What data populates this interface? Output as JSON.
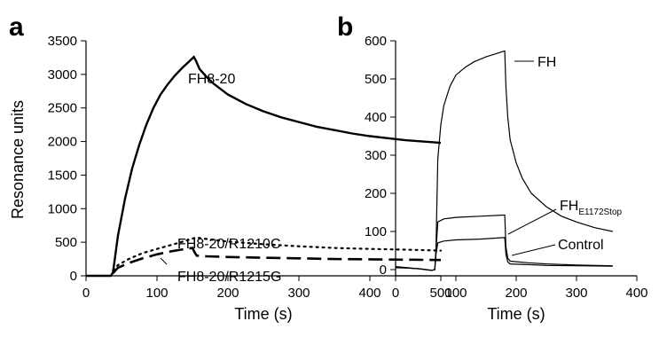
{
  "chart_data": [
    {
      "panel": "a",
      "type": "line",
      "xlabel": "Time (s)",
      "ylabel": "Resonance units",
      "xlim": [
        0,
        500
      ],
      "ylim": [
        0,
        3500
      ],
      "xticks": [
        0,
        100,
        200,
        300,
        400,
        500
      ],
      "yticks": [
        0,
        500,
        1000,
        1500,
        2000,
        2500,
        3000,
        3500
      ],
      "grid": false,
      "series": [
        {
          "name": "FH8-20",
          "style": "solid",
          "x": [
            0,
            35,
            38,
            45,
            55,
            65,
            75,
            85,
            95,
            105,
            115,
            125,
            135,
            145,
            150,
            152,
            155,
            160,
            170,
            180,
            200,
            225,
            250,
            275,
            300,
            325,
            350,
            375,
            400,
            425,
            450,
            475,
            500
          ],
          "y": [
            0,
            0,
            50,
            600,
            1150,
            1600,
            1950,
            2250,
            2500,
            2700,
            2850,
            2980,
            3090,
            3190,
            3240,
            3260,
            3200,
            3080,
            2960,
            2860,
            2700,
            2560,
            2450,
            2360,
            2290,
            2220,
            2170,
            2120,
            2080,
            2050,
            2020,
            2000,
            1980
          ]
        },
        {
          "name": "FH8-20/R1210C",
          "style": "dotted",
          "x": [
            38,
            45,
            60,
            80,
            100,
            120,
            140,
            155,
            175,
            200,
            250,
            300,
            350,
            400,
            450,
            500
          ],
          "y": [
            80,
            160,
            250,
            340,
            400,
            460,
            520,
            570,
            540,
            510,
            470,
            440,
            415,
            400,
            390,
            375
          ]
        },
        {
          "name": "FH8-20/R1215G",
          "style": "dashed",
          "x": [
            38,
            45,
            60,
            80,
            100,
            120,
            140,
            150,
            153,
            156,
            170,
            200,
            250,
            300,
            350,
            400,
            450,
            500
          ],
          "y": [
            40,
            120,
            190,
            260,
            320,
            365,
            400,
            415,
            350,
            300,
            290,
            280,
            270,
            260,
            250,
            245,
            240,
            235
          ]
        }
      ],
      "annotations": {
        "fh820": "FH8-20",
        "r1210c": "FH8-20/R1210C",
        "r1215g": "FH8-20/R1215G"
      }
    },
    {
      "panel": "b",
      "type": "line",
      "xlabel": "Time (s)",
      "ylabel": "",
      "xlim": [
        0,
        400
      ],
      "ylim": [
        -20,
        600
      ],
      "xticks": [
        0,
        100,
        200,
        300,
        400
      ],
      "yticks": [
        0,
        100,
        200,
        300,
        400,
        500,
        600
      ],
      "grid": false,
      "series": [
        {
          "name": "FH",
          "style": "solid",
          "x": [
            0,
            20,
            40,
            60,
            65,
            67,
            70,
            75,
            80,
            90,
            100,
            115,
            130,
            150,
            170,
            180,
            181,
            183,
            186,
            190,
            200,
            210,
            225,
            250,
            275,
            300,
            330,
            360
          ],
          "y": [
            8,
            5,
            2,
            -2,
            0,
            60,
            290,
            380,
            430,
            480,
            510,
            530,
            545,
            558,
            568,
            573,
            573,
            480,
            400,
            340,
            280,
            240,
            200,
            165,
            140,
            125,
            110,
            100
          ]
        },
        {
          "name": "FH",
          "subscript": "E1172Stop",
          "style": "solid",
          "x": [
            0,
            20,
            40,
            60,
            65,
            67,
            70,
            80,
            100,
            140,
            180,
            181,
            183,
            186,
            190,
            220,
            250,
            300,
            360
          ],
          "y": [
            6,
            4,
            2,
            -2,
            0,
            50,
            125,
            133,
            137,
            140,
            143,
            143,
            60,
            30,
            22,
            18,
            15,
            12,
            10
          ]
        },
        {
          "name": "Control",
          "style": "solid",
          "x": [
            0,
            20,
            40,
            60,
            65,
            67,
            70,
            80,
            100,
            140,
            180,
            181,
            183,
            186,
            190,
            220,
            250,
            300,
            360
          ],
          "y": [
            5,
            4,
            2,
            -2,
            0,
            40,
            70,
            75,
            78,
            80,
            84,
            84,
            40,
            20,
            15,
            13,
            11,
            10,
            9
          ]
        }
      ],
      "annotations": {
        "fh": "FH",
        "fhe": "FH",
        "fhe_sub": "E1172Stop",
        "control": "Control"
      }
    }
  ]
}
